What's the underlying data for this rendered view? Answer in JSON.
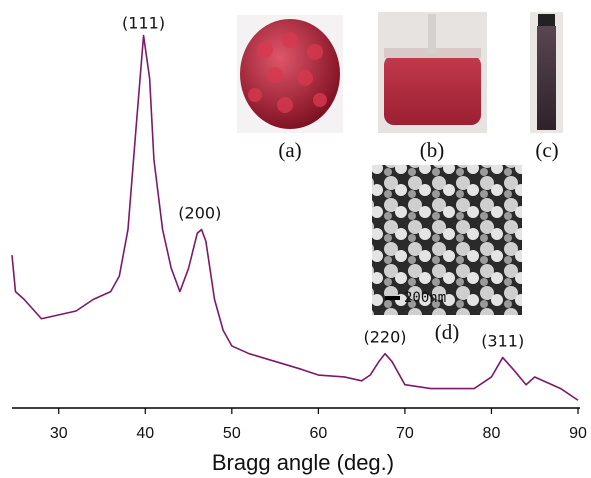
{
  "chart_data": {
    "type": "line",
    "x_label": "Bragg angle (deg.)",
    "x": [
      24.6,
      25,
      26,
      28,
      30,
      32,
      34,
      36,
      37,
      38,
      39,
      39.8,
      40.5,
      41,
      42,
      43,
      44,
      45,
      46,
      46.5,
      47,
      48,
      49,
      50,
      52,
      55,
      58,
      60,
      63,
      65,
      66,
      67,
      67.7,
      68.5,
      70,
      73,
      76,
      78,
      80,
      81.3,
      82.5,
      84,
      85,
      86,
      88,
      90
    ],
    "values": [
      39.4,
      30,
      28,
      23,
      24,
      25,
      28,
      30,
      34,
      46,
      74,
      96,
      85,
      64,
      46,
      36,
      30,
      36,
      45,
      46,
      43,
      28,
      20,
      16,
      14,
      12,
      10,
      8.5,
      8,
      7,
      8.5,
      12,
      14,
      12,
      6,
      5,
      5,
      5,
      8,
      13,
      10,
      6,
      8,
      7,
      5,
      2
    ],
    "color": "#7b1a6c",
    "xlim": [
      24.6,
      90
    ],
    "xticks": [
      30,
      40,
      50,
      60,
      70,
      80,
      90
    ],
    "ylim": [
      0,
      100
    ],
    "annotations": [
      {
        "text": "(111)",
        "x": 39.8,
        "y": 99
      },
      {
        "text": "(200)",
        "x": 46.3,
        "y": 50
      },
      {
        "text": "(220)",
        "x": 67.7,
        "y": 18
      },
      {
        "text": "(311)",
        "x": 81.3,
        "y": 17
      }
    ],
    "insets": [
      {
        "label": "(a)"
      },
      {
        "label": "(b)"
      },
      {
        "label": "(c)"
      },
      {
        "label": "(d)"
      }
    ],
    "scale_bar": "200nm"
  }
}
